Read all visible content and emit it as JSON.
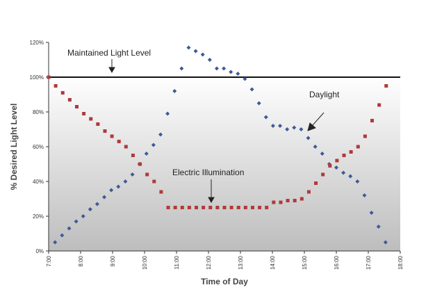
{
  "chart_data": {
    "type": "scatter",
    "xlabel": "Time of Day",
    "ylabel": "% Desired Light Level",
    "x_ticks": [
      "7:00",
      "8:00",
      "9:00",
      "10:00",
      "11:00",
      "12:00",
      "13:00",
      "14:00",
      "15:00",
      "16:00",
      "17:00",
      "18:00"
    ],
    "y_ticks": [
      "0%",
      "20%",
      "40%",
      "60%",
      "80%",
      "100%",
      "120%"
    ],
    "xlim": [
      7,
      18
    ],
    "ylim": [
      0,
      120
    ],
    "grid": false,
    "background": "vertical gradient white to grey",
    "reference_line": {
      "y": 100,
      "label": "Maintained Light Level"
    },
    "annotations": [
      {
        "text": "Maintained Light Level"
      },
      {
        "text": "Electric Illumination"
      },
      {
        "text": "Daylight"
      }
    ],
    "series": [
      {
        "name": "Daylight",
        "color": "#3d5a99",
        "marker": "diamond",
        "points": [
          [
            7.2,
            5
          ],
          [
            7.42,
            9
          ],
          [
            7.64,
            13
          ],
          [
            7.86,
            17
          ],
          [
            8.08,
            20
          ],
          [
            8.3,
            24
          ],
          [
            8.52,
            27
          ],
          [
            8.74,
            31
          ],
          [
            8.96,
            35
          ],
          [
            9.18,
            37
          ],
          [
            9.4,
            40
          ],
          [
            9.62,
            44
          ],
          [
            9.84,
            50
          ],
          [
            10.06,
            56
          ],
          [
            10.28,
            61
          ],
          [
            10.5,
            67
          ],
          [
            10.72,
            79
          ],
          [
            10.94,
            92
          ],
          [
            11.16,
            105
          ],
          [
            11.38,
            117
          ],
          [
            11.6,
            115
          ],
          [
            11.82,
            113
          ],
          [
            12.04,
            110
          ],
          [
            12.26,
            105
          ],
          [
            12.48,
            105
          ],
          [
            12.7,
            103
          ],
          [
            12.92,
            102
          ],
          [
            13.14,
            99
          ],
          [
            13.36,
            93
          ],
          [
            13.58,
            85
          ],
          [
            13.8,
            77
          ],
          [
            14.02,
            72
          ],
          [
            14.24,
            72
          ],
          [
            14.46,
            70
          ],
          [
            14.68,
            71
          ],
          [
            14.9,
            70
          ],
          [
            15.12,
            65
          ],
          [
            15.34,
            60
          ],
          [
            15.56,
            56
          ],
          [
            15.78,
            50
          ],
          [
            16.0,
            48
          ],
          [
            16.22,
            45
          ],
          [
            16.44,
            43
          ],
          [
            16.66,
            40
          ],
          [
            16.88,
            32
          ],
          [
            17.1,
            22
          ],
          [
            17.32,
            14
          ],
          [
            17.54,
            5
          ]
        ]
      },
      {
        "name": "Electric Illumination",
        "color": "#b03a3a",
        "marker": "square",
        "points": [
          [
            7.0,
            100
          ],
          [
            7.22,
            95
          ],
          [
            7.44,
            91
          ],
          [
            7.66,
            87
          ],
          [
            7.88,
            83
          ],
          [
            8.1,
            79
          ],
          [
            8.32,
            76
          ],
          [
            8.54,
            73
          ],
          [
            8.76,
            69
          ],
          [
            8.98,
            66
          ],
          [
            9.2,
            63
          ],
          [
            9.42,
            60
          ],
          [
            9.64,
            55
          ],
          [
            9.86,
            50
          ],
          [
            10.08,
            44
          ],
          [
            10.3,
            40
          ],
          [
            10.52,
            34
          ],
          [
            10.74,
            25
          ],
          [
            10.96,
            25
          ],
          [
            11.18,
            25
          ],
          [
            11.4,
            25
          ],
          [
            11.62,
            25
          ],
          [
            11.84,
            25
          ],
          [
            12.06,
            25
          ],
          [
            12.28,
            25
          ],
          [
            12.5,
            25
          ],
          [
            12.72,
            25
          ],
          [
            12.94,
            25
          ],
          [
            13.16,
            25
          ],
          [
            13.38,
            25
          ],
          [
            13.6,
            25
          ],
          [
            13.82,
            25
          ],
          [
            14.04,
            28
          ],
          [
            14.26,
            28
          ],
          [
            14.48,
            29
          ],
          [
            14.7,
            29
          ],
          [
            14.92,
            30
          ],
          [
            15.14,
            34
          ],
          [
            15.36,
            39
          ],
          [
            15.58,
            44
          ],
          [
            15.8,
            49
          ],
          [
            16.02,
            52
          ],
          [
            16.24,
            55
          ],
          [
            16.46,
            57
          ],
          [
            16.68,
            60
          ],
          [
            16.9,
            66
          ],
          [
            17.12,
            75
          ],
          [
            17.34,
            84
          ],
          [
            17.56,
            95
          ]
        ]
      }
    ]
  }
}
